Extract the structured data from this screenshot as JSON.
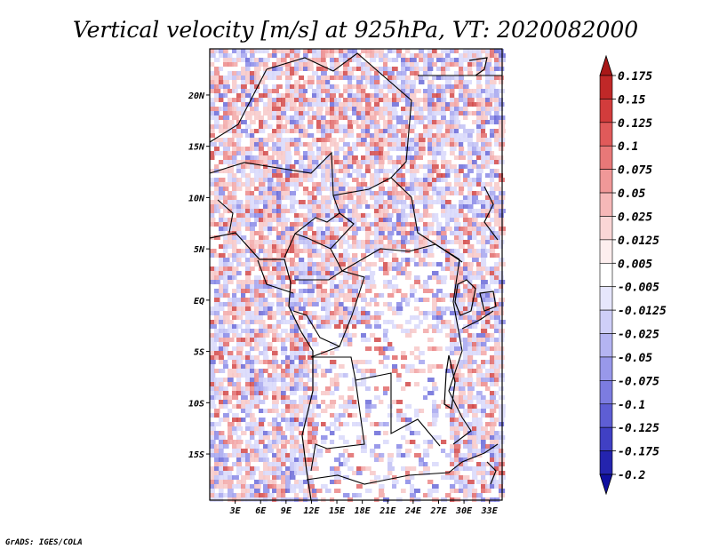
{
  "chart_data": {
    "type": "heatmap",
    "title": "Vertical velocity [m/s] at 925hPa, VT: 2020082000",
    "credit": "GrADS: IGES/COLA",
    "x_ticks": [
      "3E",
      "6E",
      "9E",
      "12E",
      "15E",
      "18E",
      "21E",
      "24E",
      "27E",
      "30E",
      "33E"
    ],
    "y_ticks": [
      "20N",
      "15N",
      "10N",
      "5N",
      "EQ",
      "5S",
      "10S",
      "15S"
    ],
    "x_tick_values": [
      3,
      6,
      9,
      12,
      15,
      18,
      21,
      24,
      27,
      30,
      33
    ],
    "y_tick_values": [
      20,
      15,
      10,
      5,
      0,
      -5,
      -10,
      -15
    ],
    "lon_range": [
      0,
      34.5
    ],
    "lat_range": [
      -19.5,
      24.5
    ],
    "colorbar": {
      "labels": [
        "0.175",
        "0.15",
        "0.125",
        "0.1",
        "0.075",
        "0.05",
        "0.025",
        "0.0125",
        "0.005",
        "-0.005",
        "-0.0125",
        "-0.025",
        "-0.05",
        "-0.075",
        "-0.1",
        "-0.125",
        "-0.175",
        "-0.2"
      ],
      "colors": [
        "#a81818",
        "#c02828",
        "#d23c3c",
        "#e05a5a",
        "#e87878",
        "#f09898",
        "#f6b8b8",
        "#fad6d6",
        "#fdeeee",
        "#ffffff",
        "#e6e6fc",
        "#cfcff8",
        "#b4b4f2",
        "#9898ea",
        "#7c7ce0",
        "#5e5ed4",
        "#4040c4",
        "#2424ae",
        "#1010a0"
      ]
    }
  }
}
